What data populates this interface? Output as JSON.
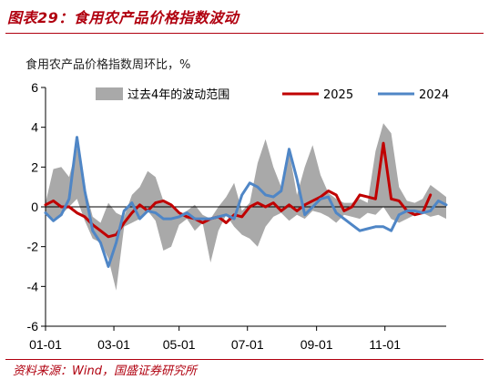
{
  "figure_title": "图表29：食用农产品价格指数波动",
  "source": "资料来源：Wind，国盛证券研究所",
  "colors": {
    "range": "#a9a9a9",
    "s2025": "#c00000",
    "s2024": "#4f86c6",
    "accent": "#b0000f"
  },
  "chart_data": {
    "type": "line",
    "title": "食用农产品价格指数周环比，%",
    "xlabel": "",
    "ylabel": "",
    "ylim": [
      -6,
      6
    ],
    "yticks": [
      -6,
      -4,
      -2,
      0,
      2,
      4,
      6
    ],
    "xlim": [
      1,
      52
    ],
    "xticks": [
      {
        "week": 1,
        "label": "01-01"
      },
      {
        "week": 9.7,
        "label": "03-01"
      },
      {
        "week": 18,
        "label": "05-01"
      },
      {
        "week": 26.7,
        "label": "07-01"
      },
      {
        "week": 35.5,
        "label": "09-01"
      },
      {
        "week": 44.2,
        "label": "11-01"
      }
    ],
    "legend": [
      "过去4年的波动范围",
      "2025",
      "2024"
    ],
    "legend_placement": "top",
    "grid": false,
    "range_band": {
      "name": "过去4年的波动范围",
      "weeks": [
        1,
        2,
        3,
        4,
        5,
        6,
        7,
        8,
        9,
        10,
        11,
        12,
        13,
        14,
        15,
        16,
        17,
        18,
        19,
        20,
        21,
        22,
        23,
        24,
        25,
        26,
        27,
        28,
        29,
        30,
        31,
        32,
        33,
        34,
        35,
        36,
        37,
        38,
        39,
        40,
        41,
        42,
        43,
        44,
        45,
        46,
        47,
        48,
        49,
        50,
        51,
        52
      ],
      "upper": [
        0.2,
        1.9,
        2.0,
        1.5,
        3.0,
        1.0,
        -0.5,
        -0.8,
        0.2,
        -0.3,
        -0.5,
        0.6,
        1.0,
        1.8,
        1.5,
        0.3,
        0.0,
        -0.4,
        -0.2,
        0.1,
        -0.4,
        -0.6,
        0.0,
        0.5,
        1.2,
        -0.2,
        0.2,
        2.2,
        3.4,
        2.0,
        1.0,
        2.8,
        0.6,
        2.0,
        3.1,
        1.6,
        0.7,
        0.4,
        0.2,
        0.2,
        0.4,
        0.2,
        2.8,
        4.2,
        3.7,
        1.0,
        0.3,
        0.2,
        0.4,
        1.1,
        0.8,
        0.5
      ],
      "lower": [
        -0.3,
        -0.6,
        -0.4,
        0.0,
        0.4,
        -0.7,
        -1.6,
        -1.8,
        -2.6,
        -4.2,
        -1.0,
        -0.8,
        -0.6,
        -0.2,
        -0.7,
        -2.2,
        -2.0,
        -0.9,
        -0.6,
        -1.2,
        -0.8,
        -2.8,
        -1.2,
        -0.4,
        -1.0,
        -1.4,
        -1.6,
        -2.0,
        -1.0,
        -0.5,
        -0.3,
        -0.7,
        -0.4,
        -0.6,
        -0.2,
        -0.3,
        -0.5,
        -0.8,
        -0.4,
        -0.5,
        -0.6,
        -0.3,
        -0.4,
        0.0,
        -0.6,
        -0.8,
        -0.6,
        -0.4,
        -0.3,
        -0.5,
        -0.4,
        -0.6
      ]
    },
    "series": [
      {
        "name": "2025",
        "color": "#c00000",
        "weeks": [
          1,
          2,
          3,
          4,
          5,
          6,
          7,
          8,
          9,
          10,
          11,
          12,
          13,
          14,
          15,
          16,
          17,
          18,
          19,
          20,
          21,
          22,
          23,
          24,
          25,
          26,
          27,
          28,
          29,
          30,
          31,
          32,
          33,
          34,
          35,
          36,
          37,
          38,
          39,
          40,
          41,
          42,
          43,
          44,
          45,
          46,
          47,
          48,
          49,
          50
        ],
        "values": [
          0.1,
          0.3,
          0.0,
          0.0,
          -0.3,
          -0.5,
          -0.9,
          -1.2,
          -1.5,
          -1.4,
          -0.8,
          -0.3,
          0.1,
          -0.2,
          0.2,
          0.3,
          0.1,
          -0.3,
          -0.5,
          -0.6,
          -0.8,
          -0.6,
          -0.5,
          -0.8,
          -0.4,
          -0.5,
          0.0,
          0.2,
          0.0,
          0.2,
          -0.2,
          0.1,
          -0.2,
          0.1,
          0.3,
          0.5,
          0.8,
          0.6,
          -0.2,
          0.0,
          0.6,
          0.5,
          0.4,
          3.2,
          0.4,
          0.3,
          -0.2,
          -0.4,
          -0.3,
          0.6
        ]
      },
      {
        "name": "2024",
        "color": "#4f86c6",
        "weeks": [
          1,
          2,
          3,
          4,
          5,
          6,
          7,
          8,
          9,
          10,
          11,
          12,
          13,
          14,
          15,
          16,
          17,
          18,
          19,
          20,
          21,
          22,
          23,
          24,
          25,
          26,
          27,
          28,
          29,
          30,
          31,
          32,
          33,
          34,
          35,
          36,
          37,
          38,
          39,
          40,
          41,
          42,
          43,
          44,
          45,
          46,
          47,
          48,
          49,
          50,
          51,
          52
        ],
        "values": [
          -0.3,
          -0.7,
          -0.4,
          0.4,
          3.5,
          0.8,
          -1.2,
          -1.8,
          -3.0,
          -1.8,
          -0.2,
          0.2,
          -0.6,
          -0.2,
          -0.3,
          -0.6,
          -0.6,
          -0.5,
          -0.3,
          -0.6,
          -0.6,
          -0.6,
          -0.5,
          -0.4,
          -0.6,
          0.6,
          1.2,
          1.0,
          0.6,
          0.5,
          0.8,
          2.9,
          1.4,
          -0.4,
          0.0,
          0.4,
          0.5,
          -0.3,
          -0.6,
          -0.9,
          -1.2,
          -1.1,
          -1.0,
          -1.0,
          -1.2,
          -0.4,
          -0.2,
          -0.2,
          -0.3,
          -0.2,
          0.3,
          0.1
        ]
      }
    ]
  }
}
